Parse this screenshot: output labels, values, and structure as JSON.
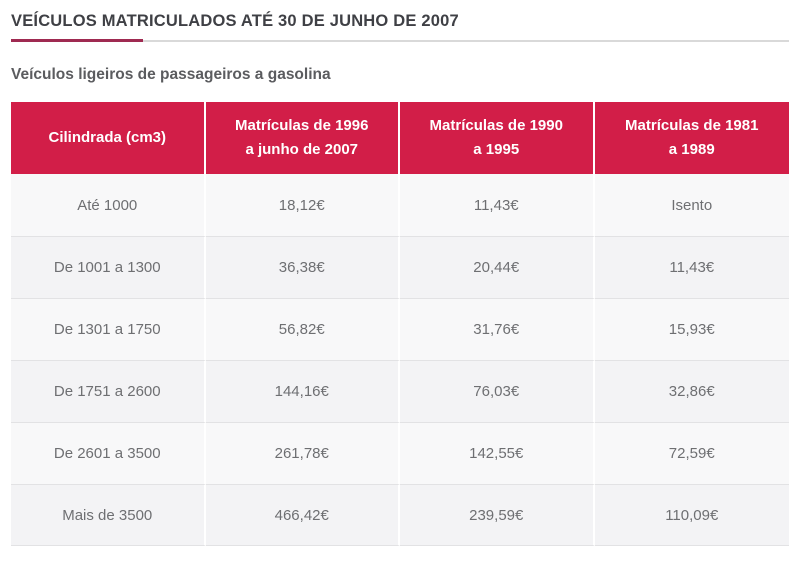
{
  "page": {
    "title": "VEÍCULOS MATRICULADOS ATÉ 30 DE JUNHO DE 2007",
    "subtitle": "Veículos ligeiros de passageiros a gasolina"
  },
  "colors": {
    "header_bg": "#d21e48",
    "underline_accent": "#9f2a51",
    "underline_track": "#d9d9d9",
    "title_text": "#3f4045",
    "subtitle_text": "#5b5c5f",
    "cell_text": "#6e6f72",
    "row_odd_bg": "#f8f8f9",
    "row_even_bg": "#f3f3f5"
  },
  "table": {
    "columns": [
      {
        "key": "cilindrada",
        "line1": "Cilindrada (cm3)",
        "line2": ""
      },
      {
        "key": "matriculas-1996-2007",
        "line1": "Matrículas de 1996",
        "line2": "a junho de 2007"
      },
      {
        "key": "matriculas-1990-1995",
        "line1": "Matrículas de 1990",
        "line2": "a 1995"
      },
      {
        "key": "matriculas-1981-1989",
        "line1": "Matrículas de 1981",
        "line2": "a 1989"
      }
    ],
    "rows": [
      [
        "Até 1000",
        "18,12€",
        "11,43€",
        "Isento"
      ],
      [
        "De 1001 a 1300",
        "36,38€",
        "20,44€",
        "11,43€"
      ],
      [
        "De 1301 a 1750",
        "56,82€",
        "31,76€",
        "15,93€"
      ],
      [
        "De 1751 a 2600",
        "144,16€",
        "76,03€",
        "32,86€"
      ],
      [
        "De 2601 a 3500",
        "261,78€",
        "142,55€",
        "72,59€"
      ],
      [
        "Mais de 3500",
        "466,42€",
        "239,59€",
        "110,09€"
      ]
    ]
  }
}
